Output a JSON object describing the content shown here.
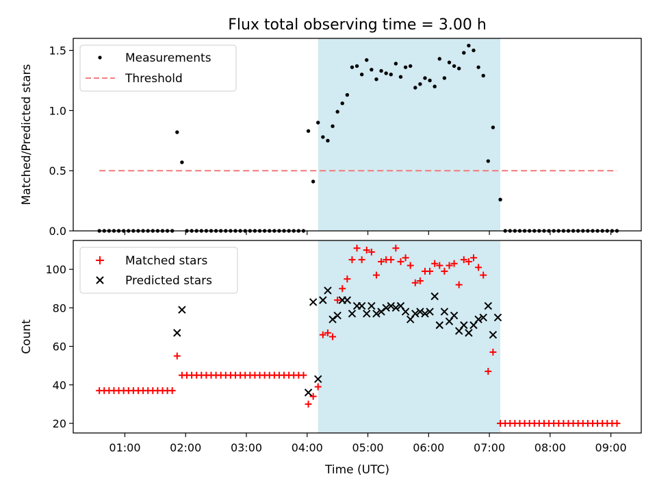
{
  "title": "Flux total observing time = 3.00 h",
  "shade_color": "#add8e6",
  "chart_data": [
    {
      "id": "ratio",
      "type": "scatter",
      "ylabel": "Matched/Predicted stars",
      "ylim": [
        0.0,
        1.6
      ],
      "yticks": [
        0.0,
        0.5,
        1.0,
        1.5
      ],
      "ytick_labels": [
        "0.0",
        "0.5",
        "1.0",
        "1.5"
      ],
      "xlim": [
        0.15,
        9.5
      ],
      "shaded_span": [
        4.18,
        7.18
      ],
      "legend": {
        "position": "top-left",
        "entries": [
          "Measurements",
          "Threshold"
        ]
      },
      "series": [
        {
          "name": "Measurements",
          "marker": "dot",
          "color": "#000000",
          "points": [
            [
              0.58,
              0
            ],
            [
              0.66,
              0
            ],
            [
              0.74,
              0
            ],
            [
              0.82,
              0
            ],
            [
              0.9,
              0
            ],
            [
              0.98,
              0
            ],
            [
              1.06,
              0
            ],
            [
              1.14,
              0
            ],
            [
              1.22,
              0
            ],
            [
              1.3,
              0
            ],
            [
              1.38,
              0
            ],
            [
              1.46,
              0
            ],
            [
              1.54,
              0
            ],
            [
              1.62,
              0
            ],
            [
              1.7,
              0
            ],
            [
              1.78,
              0
            ],
            [
              1.86,
              0.82
            ],
            [
              1.94,
              0.57
            ],
            [
              2.02,
              0
            ],
            [
              2.1,
              0
            ],
            [
              2.18,
              0
            ],
            [
              2.26,
              0
            ],
            [
              2.34,
              0
            ],
            [
              2.42,
              0
            ],
            [
              2.5,
              0
            ],
            [
              2.58,
              0
            ],
            [
              2.66,
              0
            ],
            [
              2.74,
              0
            ],
            [
              2.82,
              0
            ],
            [
              2.9,
              0
            ],
            [
              2.98,
              0
            ],
            [
              3.06,
              0
            ],
            [
              3.14,
              0
            ],
            [
              3.22,
              0
            ],
            [
              3.3,
              0
            ],
            [
              3.38,
              0
            ],
            [
              3.46,
              0
            ],
            [
              3.54,
              0
            ],
            [
              3.62,
              0
            ],
            [
              3.7,
              0
            ],
            [
              3.78,
              0
            ],
            [
              3.86,
              0
            ],
            [
              3.94,
              0
            ],
            [
              4.02,
              0.83
            ],
            [
              4.1,
              0.41
            ],
            [
              4.18,
              0.9
            ],
            [
              4.26,
              0.78
            ],
            [
              4.34,
              0.75
            ],
            [
              4.42,
              0.87
            ],
            [
              4.5,
              0.99
            ],
            [
              4.58,
              1.06
            ],
            [
              4.66,
              1.13
            ],
            [
              4.74,
              1.36
            ],
            [
              4.82,
              1.37
            ],
            [
              4.9,
              1.3
            ],
            [
              4.98,
              1.42
            ],
            [
              5.06,
              1.34
            ],
            [
              5.14,
              1.26
            ],
            [
              5.22,
              1.33
            ],
            [
              5.3,
              1.31
            ],
            [
              5.38,
              1.3
            ],
            [
              5.46,
              1.39
            ],
            [
              5.54,
              1.28
            ],
            [
              5.62,
              1.36
            ],
            [
              5.7,
              1.37
            ],
            [
              5.78,
              1.19
            ],
            [
              5.86,
              1.22
            ],
            [
              5.94,
              1.27
            ],
            [
              6.02,
              1.25
            ],
            [
              6.1,
              1.2
            ],
            [
              6.18,
              1.43
            ],
            [
              6.26,
              1.27
            ],
            [
              6.34,
              1.4
            ],
            [
              6.42,
              1.37
            ],
            [
              6.5,
              1.35
            ],
            [
              6.58,
              1.48
            ],
            [
              6.66,
              1.54
            ],
            [
              6.74,
              1.5
            ],
            [
              6.82,
              1.36
            ],
            [
              6.9,
              1.29
            ],
            [
              6.98,
              0.58
            ],
            [
              7.06,
              0.86
            ],
            [
              7.18,
              0.26
            ],
            [
              7.26,
              0
            ],
            [
              7.34,
              0
            ],
            [
              7.42,
              0
            ],
            [
              7.5,
              0
            ],
            [
              7.58,
              0
            ],
            [
              7.66,
              0
            ],
            [
              7.74,
              0
            ],
            [
              7.82,
              0
            ],
            [
              7.9,
              0
            ],
            [
              7.98,
              0
            ],
            [
              8.06,
              0
            ],
            [
              8.14,
              0
            ],
            [
              8.22,
              0
            ],
            [
              8.3,
              0
            ],
            [
              8.38,
              0
            ],
            [
              8.46,
              0
            ],
            [
              8.54,
              0
            ],
            [
              8.62,
              0
            ],
            [
              8.7,
              0
            ],
            [
              8.78,
              0
            ],
            [
              8.86,
              0
            ],
            [
              8.94,
              0
            ],
            [
              9.02,
              0
            ],
            [
              9.1,
              0
            ]
          ]
        },
        {
          "name": "Threshold",
          "style": "dashed",
          "color": "#f08080",
          "x": [
            0.58,
            9.1
          ],
          "y": [
            0.5,
            0.5
          ]
        }
      ]
    },
    {
      "id": "count",
      "type": "scatter",
      "ylabel": "Count",
      "xlabel": "Time (UTC)",
      "ylim": [
        15,
        115
      ],
      "yticks": [
        20,
        40,
        60,
        80,
        100
      ],
      "ytick_labels": [
        "20",
        "40",
        "60",
        "80",
        "100"
      ],
      "xlim": [
        0.15,
        9.5
      ],
      "xticks": [
        1,
        2,
        3,
        4,
        5,
        6,
        7,
        8,
        9
      ],
      "xtick_labels": [
        "01:00",
        "02:00",
        "03:00",
        "04:00",
        "05:00",
        "06:00",
        "07:00",
        "08:00",
        "09:00"
      ],
      "shaded_span": [
        4.18,
        7.18
      ],
      "legend": {
        "position": "top-left",
        "entries": [
          "Matched stars",
          "Predicted stars"
        ]
      },
      "series": [
        {
          "name": "Matched stars",
          "marker": "plus",
          "color": "#ff0000",
          "points": [
            [
              0.58,
              37
            ],
            [
              0.66,
              37
            ],
            [
              0.74,
              37
            ],
            [
              0.82,
              37
            ],
            [
              0.9,
              37
            ],
            [
              0.98,
              37
            ],
            [
              1.06,
              37
            ],
            [
              1.14,
              37
            ],
            [
              1.22,
              37
            ],
            [
              1.3,
              37
            ],
            [
              1.38,
              37
            ],
            [
              1.46,
              37
            ],
            [
              1.54,
              37
            ],
            [
              1.62,
              37
            ],
            [
              1.7,
              37
            ],
            [
              1.78,
              37
            ],
            [
              1.86,
              55
            ],
            [
              1.94,
              45
            ],
            [
              2.02,
              45
            ],
            [
              2.1,
              45
            ],
            [
              2.18,
              45
            ],
            [
              2.26,
              45
            ],
            [
              2.34,
              45
            ],
            [
              2.42,
              45
            ],
            [
              2.5,
              45
            ],
            [
              2.58,
              45
            ],
            [
              2.66,
              45
            ],
            [
              2.74,
              45
            ],
            [
              2.82,
              45
            ],
            [
              2.9,
              45
            ],
            [
              2.98,
              45
            ],
            [
              3.06,
              45
            ],
            [
              3.14,
              45
            ],
            [
              3.22,
              45
            ],
            [
              3.3,
              45
            ],
            [
              3.38,
              45
            ],
            [
              3.46,
              45
            ],
            [
              3.54,
              45
            ],
            [
              3.62,
              45
            ],
            [
              3.7,
              45
            ],
            [
              3.78,
              45
            ],
            [
              3.86,
              45
            ],
            [
              3.94,
              45
            ],
            [
              4.02,
              30
            ],
            [
              4.1,
              34
            ],
            [
              4.18,
              39
            ],
            [
              4.26,
              66
            ],
            [
              4.34,
              67
            ],
            [
              4.42,
              65
            ],
            [
              4.5,
              84
            ],
            [
              4.58,
              90
            ],
            [
              4.66,
              95
            ],
            [
              4.74,
              105
            ],
            [
              4.82,
              111
            ],
            [
              4.9,
              105
            ],
            [
              4.98,
              110
            ],
            [
              5.06,
              109
            ],
            [
              5.14,
              97
            ],
            [
              5.22,
              104
            ],
            [
              5.3,
              105
            ],
            [
              5.38,
              105
            ],
            [
              5.46,
              111
            ],
            [
              5.54,
              104
            ],
            [
              5.62,
              106
            ],
            [
              5.7,
              102
            ],
            [
              5.78,
              93
            ],
            [
              5.86,
              94
            ],
            [
              5.94,
              99
            ],
            [
              6.02,
              99
            ],
            [
              6.1,
              103
            ],
            [
              6.18,
              102
            ],
            [
              6.26,
              99
            ],
            [
              6.34,
              102
            ],
            [
              6.42,
              103
            ],
            [
              6.5,
              92
            ],
            [
              6.58,
              105
            ],
            [
              6.66,
              104
            ],
            [
              6.74,
              106
            ],
            [
              6.82,
              101
            ],
            [
              6.9,
              97
            ],
            [
              6.98,
              47
            ],
            [
              7.06,
              57
            ],
            [
              7.18,
              20
            ],
            [
              7.26,
              20
            ],
            [
              7.34,
              20
            ],
            [
              7.42,
              20
            ],
            [
              7.5,
              20
            ],
            [
              7.58,
              20
            ],
            [
              7.66,
              20
            ],
            [
              7.74,
              20
            ],
            [
              7.82,
              20
            ],
            [
              7.9,
              20
            ],
            [
              7.98,
              20
            ],
            [
              8.06,
              20
            ],
            [
              8.14,
              20
            ],
            [
              8.22,
              20
            ],
            [
              8.3,
              20
            ],
            [
              8.38,
              20
            ],
            [
              8.46,
              20
            ],
            [
              8.54,
              20
            ],
            [
              8.62,
              20
            ],
            [
              8.7,
              20
            ],
            [
              8.78,
              20
            ],
            [
              8.86,
              20
            ],
            [
              8.94,
              20
            ],
            [
              9.02,
              20
            ],
            [
              9.1,
              20
            ]
          ]
        },
        {
          "name": "Predicted stars",
          "marker": "x",
          "color": "#000000",
          "points": [
            [
              1.86,
              67
            ],
            [
              1.94,
              79
            ],
            [
              4.02,
              36
            ],
            [
              4.1,
              83
            ],
            [
              4.18,
              43
            ],
            [
              4.26,
              84
            ],
            [
              4.34,
              89
            ],
            [
              4.42,
              74
            ],
            [
              4.5,
              76
            ],
            [
              4.58,
              84
            ],
            [
              4.66,
              84
            ],
            [
              4.74,
              77
            ],
            [
              4.82,
              81
            ],
            [
              4.9,
              81
            ],
            [
              4.98,
              77
            ],
            [
              5.06,
              81
            ],
            [
              5.14,
              77
            ],
            [
              5.22,
              78
            ],
            [
              5.3,
              80
            ],
            [
              5.38,
              81
            ],
            [
              5.46,
              80
            ],
            [
              5.54,
              81
            ],
            [
              5.62,
              78
            ],
            [
              5.7,
              74
            ],
            [
              5.78,
              77
            ],
            [
              5.86,
              78
            ],
            [
              5.94,
              77
            ],
            [
              6.02,
              78
            ],
            [
              6.1,
              86
            ],
            [
              6.18,
              71
            ],
            [
              6.26,
              78
            ],
            [
              6.34,
              73
            ],
            [
              6.42,
              76
            ],
            [
              6.5,
              68
            ],
            [
              6.58,
              71
            ],
            [
              6.66,
              67
            ],
            [
              6.74,
              71
            ],
            [
              6.82,
              74
            ],
            [
              6.9,
              75
            ],
            [
              6.98,
              81
            ],
            [
              7.06,
              66
            ],
            [
              7.14,
              75
            ]
          ]
        }
      ]
    }
  ]
}
